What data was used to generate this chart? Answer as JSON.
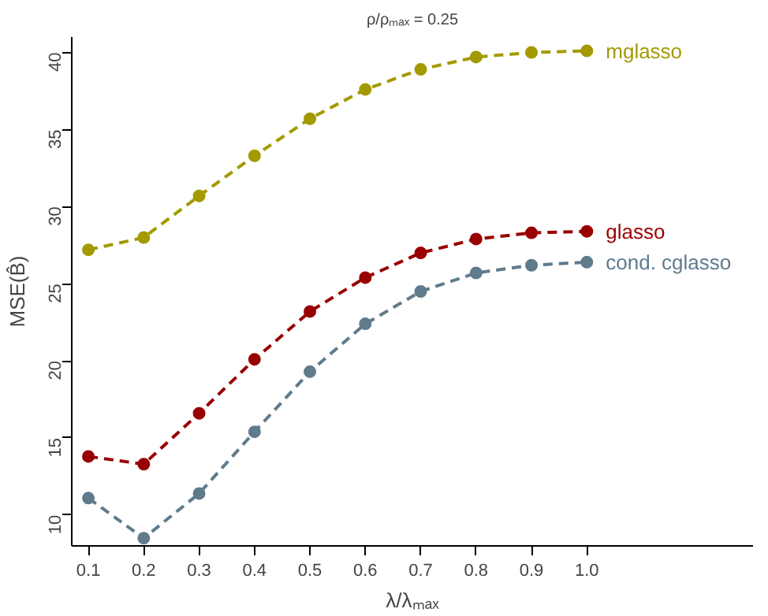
{
  "chart_data": {
    "type": "line",
    "title": "ρ/ρₘₐₓ = 0.25",
    "xlabel": "λ/λₘₐₓ",
    "ylabel": "MSE(B̂)",
    "x": [
      0.1,
      0.2,
      0.3,
      0.4,
      0.5,
      0.6,
      0.7,
      0.8,
      0.9,
      1.0
    ],
    "series": [
      {
        "name": "mglasso",
        "color": "#a39a00",
        "values": [
          27.2,
          28.0,
          30.7,
          33.3,
          35.7,
          37.6,
          38.9,
          39.7,
          40.0,
          40.1
        ]
      },
      {
        "name": "glasso",
        "color": "#990000",
        "values": [
          13.8,
          13.3,
          16.6,
          20.1,
          23.2,
          25.4,
          27.0,
          27.9,
          28.3,
          28.4
        ]
      },
      {
        "name": "cond. cglasso",
        "color": "#5f7b8c",
        "values": [
          11.1,
          8.5,
          11.4,
          15.4,
          19.3,
          22.4,
          24.5,
          25.7,
          26.2,
          26.4
        ]
      }
    ],
    "xlim": [
      0.07,
      1.3
    ],
    "ylim": [
      8,
      41
    ],
    "xticks": [
      {
        "value": 0.1,
        "label": "0.1"
      },
      {
        "value": 0.2,
        "label": "0.2"
      },
      {
        "value": 0.3,
        "label": "0.3"
      },
      {
        "value": 0.4,
        "label": "0.4"
      },
      {
        "value": 0.5,
        "label": "0.5"
      },
      {
        "value": 0.6,
        "label": "0.6"
      },
      {
        "value": 0.7,
        "label": "0.7"
      },
      {
        "value": 0.8,
        "label": "0.8"
      },
      {
        "value": 0.9,
        "label": "0.9"
      },
      {
        "value": 1.0,
        "label": "1.0"
      }
    ],
    "yticks": [
      10,
      15,
      20,
      25,
      30,
      35,
      40
    ],
    "grid": false,
    "marker": "circle",
    "line_style": "dashed"
  }
}
